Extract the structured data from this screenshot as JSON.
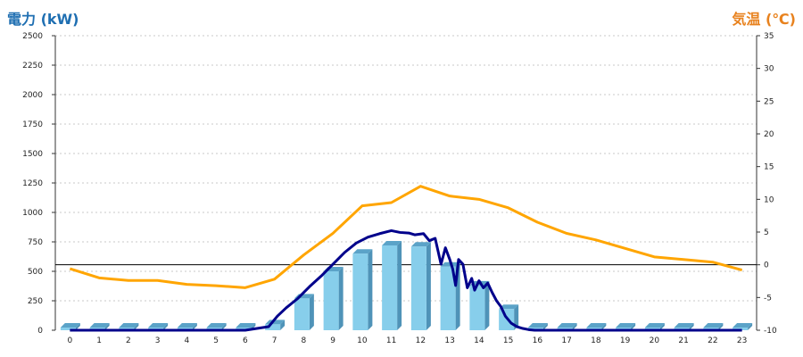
{
  "chart_data": {
    "type": "bar+line",
    "left_axis_title": "電力 (kW)",
    "right_axis_title": "気温 (℃)",
    "left_axis": {
      "min": 0,
      "max": 2500,
      "ticks": [
        0,
        250,
        500,
        750,
        1000,
        1250,
        1500,
        1750,
        2000,
        2250,
        2500
      ]
    },
    "right_axis": {
      "min": -10,
      "max": 35,
      "ticks": [
        -10,
        -5,
        0,
        5,
        10,
        15,
        20,
        25,
        30,
        35
      ]
    },
    "categories": [
      "0",
      "1",
      "2",
      "3",
      "4",
      "5",
      "6",
      "7",
      "8",
      "9",
      "10",
      "11",
      "12",
      "13",
      "14",
      "15",
      "16",
      "17",
      "18",
      "19",
      "20",
      "21",
      "22",
      "23"
    ],
    "grid": "horizontal dotted",
    "zero_reference_line_temperature": 0,
    "series": [
      {
        "kind": "bar",
        "axis": "left",
        "color": "#87CEEB",
        "values": [
          0,
          0,
          0,
          0,
          0,
          0,
          0,
          50,
          270,
          500,
          650,
          720,
          710,
          540,
          380,
          180,
          0,
          0,
          0,
          0,
          0,
          0,
          0,
          0
        ]
      },
      {
        "kind": "line",
        "axis": "left",
        "color": "#00008B",
        "x": [
          0,
          1,
          2,
          3,
          4,
          5,
          6,
          6.8,
          7.1,
          7.4,
          7.8,
          8.2,
          8.6,
          9.0,
          9.4,
          9.8,
          10.2,
          10.6,
          11.0,
          11.3,
          11.6,
          11.8,
          12.1,
          12.3,
          12.5,
          12.7,
          12.85,
          13.0,
          13.1,
          13.2,
          13.3,
          13.45,
          13.6,
          13.75,
          13.85,
          14.0,
          14.15,
          14.3,
          14.45,
          14.6,
          14.75,
          14.9,
          15.1,
          15.3,
          15.5,
          15.7,
          15.9,
          16.1,
          17,
          18,
          19,
          20,
          21,
          22,
          23
        ],
        "values": [
          0,
          0,
          0,
          0,
          0,
          0,
          0,
          30,
          120,
          190,
          270,
          370,
          460,
          560,
          660,
          740,
          790,
          820,
          845,
          830,
          825,
          810,
          820,
          760,
          780,
          560,
          700,
          600,
          520,
          380,
          600,
          560,
          360,
          440,
          340,
          420,
          360,
          400,
          320,
          250,
          200,
          120,
          60,
          30,
          15,
          5,
          0,
          0,
          0,
          0,
          0,
          0,
          0,
          0,
          0
        ]
      },
      {
        "kind": "line",
        "axis": "right",
        "color": "#FFA500",
        "values": [
          -0.6,
          -2.0,
          -2.4,
          -2.4,
          -3.0,
          -3.2,
          -3.5,
          -2.2,
          1.5,
          4.8,
          9.0,
          9.5,
          12.0,
          10.5,
          10.0,
          8.7,
          6.5,
          4.8,
          3.8,
          2.5,
          1.2,
          0.8,
          0.4,
          -0.8
        ]
      }
    ]
  }
}
